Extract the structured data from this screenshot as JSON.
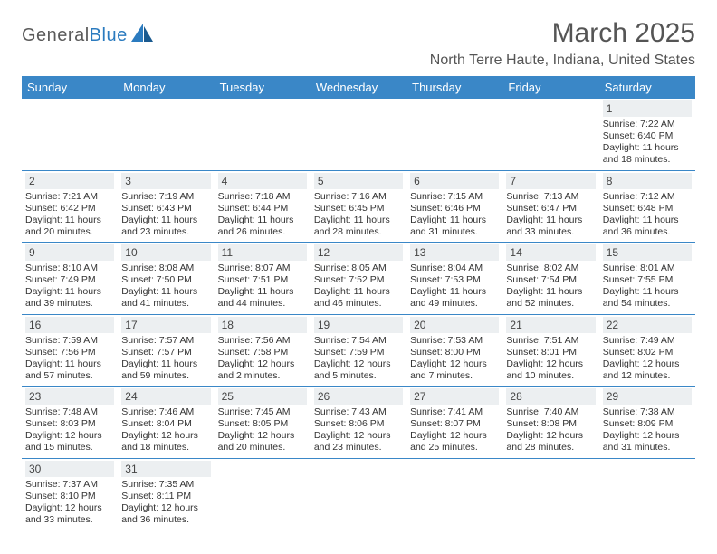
{
  "brand": {
    "part1": "General",
    "part2": "Blue"
  },
  "title": "March 2025",
  "location": "North Terre Haute, Indiana, United States",
  "colors": {
    "header_bg": "#3a87c7",
    "header_fg": "#ffffff",
    "daynum_bg": "#eceff1",
    "border": "#3a87c7"
  },
  "day_headers": [
    "Sunday",
    "Monday",
    "Tuesday",
    "Wednesday",
    "Thursday",
    "Friday",
    "Saturday"
  ],
  "weeks": [
    [
      null,
      null,
      null,
      null,
      null,
      null,
      {
        "n": "1",
        "sr": "7:22 AM",
        "ss": "6:40 PM",
        "dl": "11 hours and 18 minutes."
      }
    ],
    [
      {
        "n": "2",
        "sr": "7:21 AM",
        "ss": "6:42 PM",
        "dl": "11 hours and 20 minutes."
      },
      {
        "n": "3",
        "sr": "7:19 AM",
        "ss": "6:43 PM",
        "dl": "11 hours and 23 minutes."
      },
      {
        "n": "4",
        "sr": "7:18 AM",
        "ss": "6:44 PM",
        "dl": "11 hours and 26 minutes."
      },
      {
        "n": "5",
        "sr": "7:16 AM",
        "ss": "6:45 PM",
        "dl": "11 hours and 28 minutes."
      },
      {
        "n": "6",
        "sr": "7:15 AM",
        "ss": "6:46 PM",
        "dl": "11 hours and 31 minutes."
      },
      {
        "n": "7",
        "sr": "7:13 AM",
        "ss": "6:47 PM",
        "dl": "11 hours and 33 minutes."
      },
      {
        "n": "8",
        "sr": "7:12 AM",
        "ss": "6:48 PM",
        "dl": "11 hours and 36 minutes."
      }
    ],
    [
      {
        "n": "9",
        "sr": "8:10 AM",
        "ss": "7:49 PM",
        "dl": "11 hours and 39 minutes."
      },
      {
        "n": "10",
        "sr": "8:08 AM",
        "ss": "7:50 PM",
        "dl": "11 hours and 41 minutes."
      },
      {
        "n": "11",
        "sr": "8:07 AM",
        "ss": "7:51 PM",
        "dl": "11 hours and 44 minutes."
      },
      {
        "n": "12",
        "sr": "8:05 AM",
        "ss": "7:52 PM",
        "dl": "11 hours and 46 minutes."
      },
      {
        "n": "13",
        "sr": "8:04 AM",
        "ss": "7:53 PM",
        "dl": "11 hours and 49 minutes."
      },
      {
        "n": "14",
        "sr": "8:02 AM",
        "ss": "7:54 PM",
        "dl": "11 hours and 52 minutes."
      },
      {
        "n": "15",
        "sr": "8:01 AM",
        "ss": "7:55 PM",
        "dl": "11 hours and 54 minutes."
      }
    ],
    [
      {
        "n": "16",
        "sr": "7:59 AM",
        "ss": "7:56 PM",
        "dl": "11 hours and 57 minutes."
      },
      {
        "n": "17",
        "sr": "7:57 AM",
        "ss": "7:57 PM",
        "dl": "11 hours and 59 minutes."
      },
      {
        "n": "18",
        "sr": "7:56 AM",
        "ss": "7:58 PM",
        "dl": "12 hours and 2 minutes."
      },
      {
        "n": "19",
        "sr": "7:54 AM",
        "ss": "7:59 PM",
        "dl": "12 hours and 5 minutes."
      },
      {
        "n": "20",
        "sr": "7:53 AM",
        "ss": "8:00 PM",
        "dl": "12 hours and 7 minutes."
      },
      {
        "n": "21",
        "sr": "7:51 AM",
        "ss": "8:01 PM",
        "dl": "12 hours and 10 minutes."
      },
      {
        "n": "22",
        "sr": "7:49 AM",
        "ss": "8:02 PM",
        "dl": "12 hours and 12 minutes."
      }
    ],
    [
      {
        "n": "23",
        "sr": "7:48 AM",
        "ss": "8:03 PM",
        "dl": "12 hours and 15 minutes."
      },
      {
        "n": "24",
        "sr": "7:46 AM",
        "ss": "8:04 PM",
        "dl": "12 hours and 18 minutes."
      },
      {
        "n": "25",
        "sr": "7:45 AM",
        "ss": "8:05 PM",
        "dl": "12 hours and 20 minutes."
      },
      {
        "n": "26",
        "sr": "7:43 AM",
        "ss": "8:06 PM",
        "dl": "12 hours and 23 minutes."
      },
      {
        "n": "27",
        "sr": "7:41 AM",
        "ss": "8:07 PM",
        "dl": "12 hours and 25 minutes."
      },
      {
        "n": "28",
        "sr": "7:40 AM",
        "ss": "8:08 PM",
        "dl": "12 hours and 28 minutes."
      },
      {
        "n": "29",
        "sr": "7:38 AM",
        "ss": "8:09 PM",
        "dl": "12 hours and 31 minutes."
      }
    ],
    [
      {
        "n": "30",
        "sr": "7:37 AM",
        "ss": "8:10 PM",
        "dl": "12 hours and 33 minutes."
      },
      {
        "n": "31",
        "sr": "7:35 AM",
        "ss": "8:11 PM",
        "dl": "12 hours and 36 minutes."
      },
      null,
      null,
      null,
      null,
      null
    ]
  ],
  "labels": {
    "sunrise": "Sunrise: ",
    "sunset": "Sunset: ",
    "daylight": "Daylight: "
  }
}
